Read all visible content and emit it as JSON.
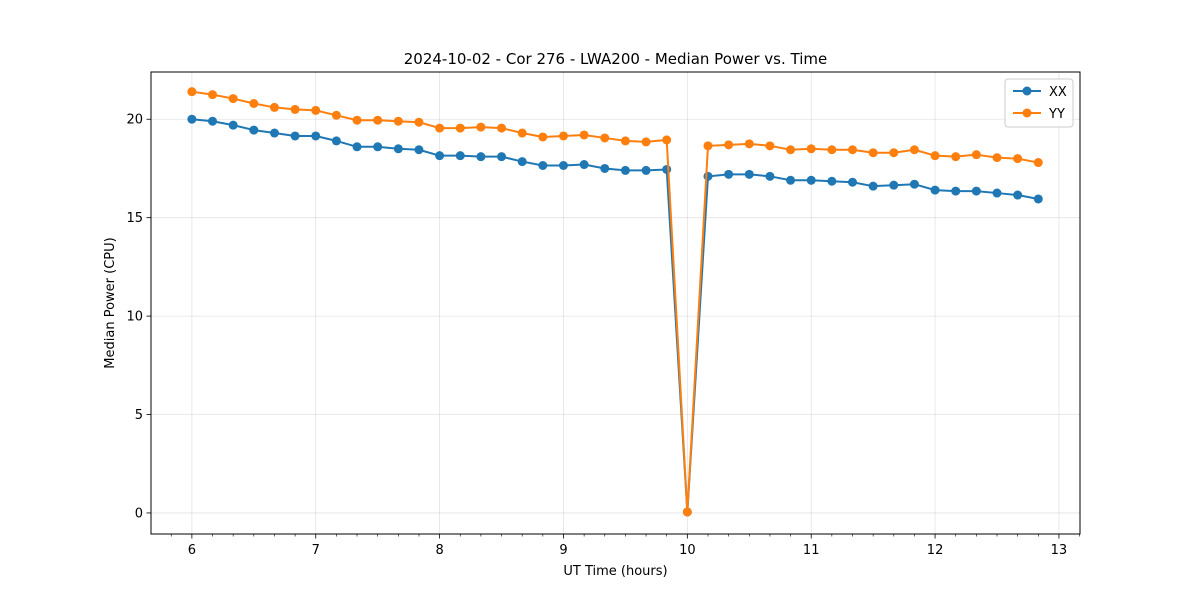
{
  "chart_data": {
    "type": "line",
    "title": "2024-10-02 - Cor 276 - LWA200 - Median Power vs. Time",
    "xlabel": "UT Time (hours)",
    "ylabel": "Median Power (CPU)",
    "xlim": [
      5.67,
      13.17
    ],
    "ylim": [
      -1.07,
      22.4
    ],
    "xticks": [
      6,
      7,
      8,
      9,
      10,
      11,
      12,
      13
    ],
    "yticks": [
      0,
      5,
      10,
      15,
      20
    ],
    "grid": true,
    "legend_position": "top-right",
    "x": [
      6.0,
      6.1667,
      6.3333,
      6.5,
      6.6667,
      6.8333,
      7.0,
      7.1667,
      7.3333,
      7.5,
      7.6667,
      7.8333,
      8.0,
      8.1667,
      8.3333,
      8.5,
      8.6667,
      8.8333,
      9.0,
      9.1667,
      9.3333,
      9.5,
      9.6667,
      9.8333,
      10.0,
      10.1667,
      10.3333,
      10.5,
      10.6667,
      10.8333,
      11.0,
      11.1667,
      11.3333,
      11.5,
      11.6667,
      11.8333,
      12.0,
      12.1667,
      12.3333,
      12.5,
      12.6667,
      12.8333
    ],
    "series": [
      {
        "name": "XX",
        "color": "#1f77b4",
        "values": [
          20.0,
          19.9,
          19.7,
          19.45,
          19.3,
          19.15,
          19.15,
          18.9,
          18.6,
          18.6,
          18.5,
          18.45,
          18.15,
          18.15,
          18.1,
          18.1,
          17.85,
          17.65,
          17.65,
          17.7,
          17.5,
          17.4,
          17.4,
          17.45,
          0.05,
          17.1,
          17.2,
          17.2,
          17.1,
          16.9,
          16.9,
          16.85,
          16.8,
          16.6,
          16.65,
          16.7,
          16.4,
          16.35,
          16.35,
          16.25,
          16.15,
          15.95
        ]
      },
      {
        "name": "YY",
        "color": "#ff7f0e",
        "values": [
          21.4,
          21.25,
          21.05,
          20.8,
          20.6,
          20.5,
          20.45,
          20.2,
          19.95,
          19.95,
          19.9,
          19.85,
          19.55,
          19.55,
          19.6,
          19.55,
          19.3,
          19.1,
          19.15,
          19.2,
          19.05,
          18.9,
          18.85,
          18.95,
          0.05,
          18.65,
          18.7,
          18.75,
          18.65,
          18.45,
          18.5,
          18.45,
          18.45,
          18.3,
          18.3,
          18.45,
          18.15,
          18.1,
          18.2,
          18.05,
          18.0,
          17.8
        ]
      }
    ]
  }
}
